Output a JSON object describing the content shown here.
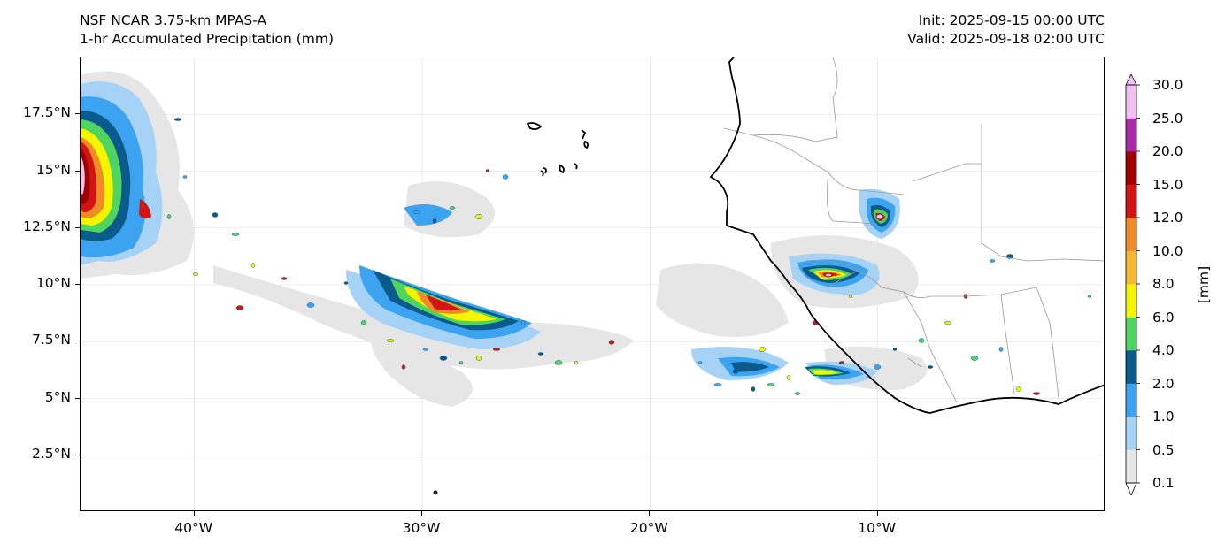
{
  "title": {
    "left_line1": "NSF NCAR 3.75-km MPAS-A",
    "left_line2": "1-hr Accumulated Precipitation (mm)",
    "right_line1": "Init: 2025-09-15 00:00 UTC",
    "right_line2": "Valid: 2025-09-18 02:00 UTC"
  },
  "map": {
    "lon_range": [
      -45,
      0
    ],
    "lat_range": [
      0,
      20
    ],
    "y_ticks": [
      {
        "lat": 17.5,
        "label": "17.5°N"
      },
      {
        "lat": 15,
        "label": "15°N"
      },
      {
        "lat": 12.5,
        "label": "12.5°N"
      },
      {
        "lat": 10,
        "label": "10°N"
      },
      {
        "lat": 7.5,
        "label": "7.5°N"
      },
      {
        "lat": 5,
        "label": "5°N"
      },
      {
        "lat": 2.5,
        "label": "2.5°N"
      }
    ],
    "x_ticks": [
      {
        "lon": -40,
        "label": "40°W"
      },
      {
        "lon": -30,
        "label": "30°W"
      },
      {
        "lon": -20,
        "label": "20°W"
      },
      {
        "lon": -10,
        "label": "10°W"
      }
    ],
    "coastline_color": "#000000",
    "border_color": "#999999",
    "grid_color": "#dddddd"
  },
  "colorbar": {
    "unit_label": "[mm]",
    "levels": [
      {
        "value": "0.1",
        "color": "#e6e6e6"
      },
      {
        "value": "0.5",
        "color": "#a6d3f5"
      },
      {
        "value": "1.0",
        "color": "#3ba3f0"
      },
      {
        "value": "2.0",
        "color": "#0a5a8c"
      },
      {
        "value": "4.0",
        "color": "#4fd45f"
      },
      {
        "value": "6.0",
        "color": "#f5f500"
      },
      {
        "value": "8.0",
        "color": "#f5b832"
      },
      {
        "value": "10.0",
        "color": "#ee8c28"
      },
      {
        "value": "12.0",
        "color": "#d21414"
      },
      {
        "value": "15.0",
        "color": "#a00000"
      },
      {
        "value": "20.0",
        "color": "#a82aa8"
      },
      {
        "value": "25.0",
        "color": "#f2c0f2"
      },
      {
        "value": "30.0",
        "color": ""
      }
    ]
  }
}
